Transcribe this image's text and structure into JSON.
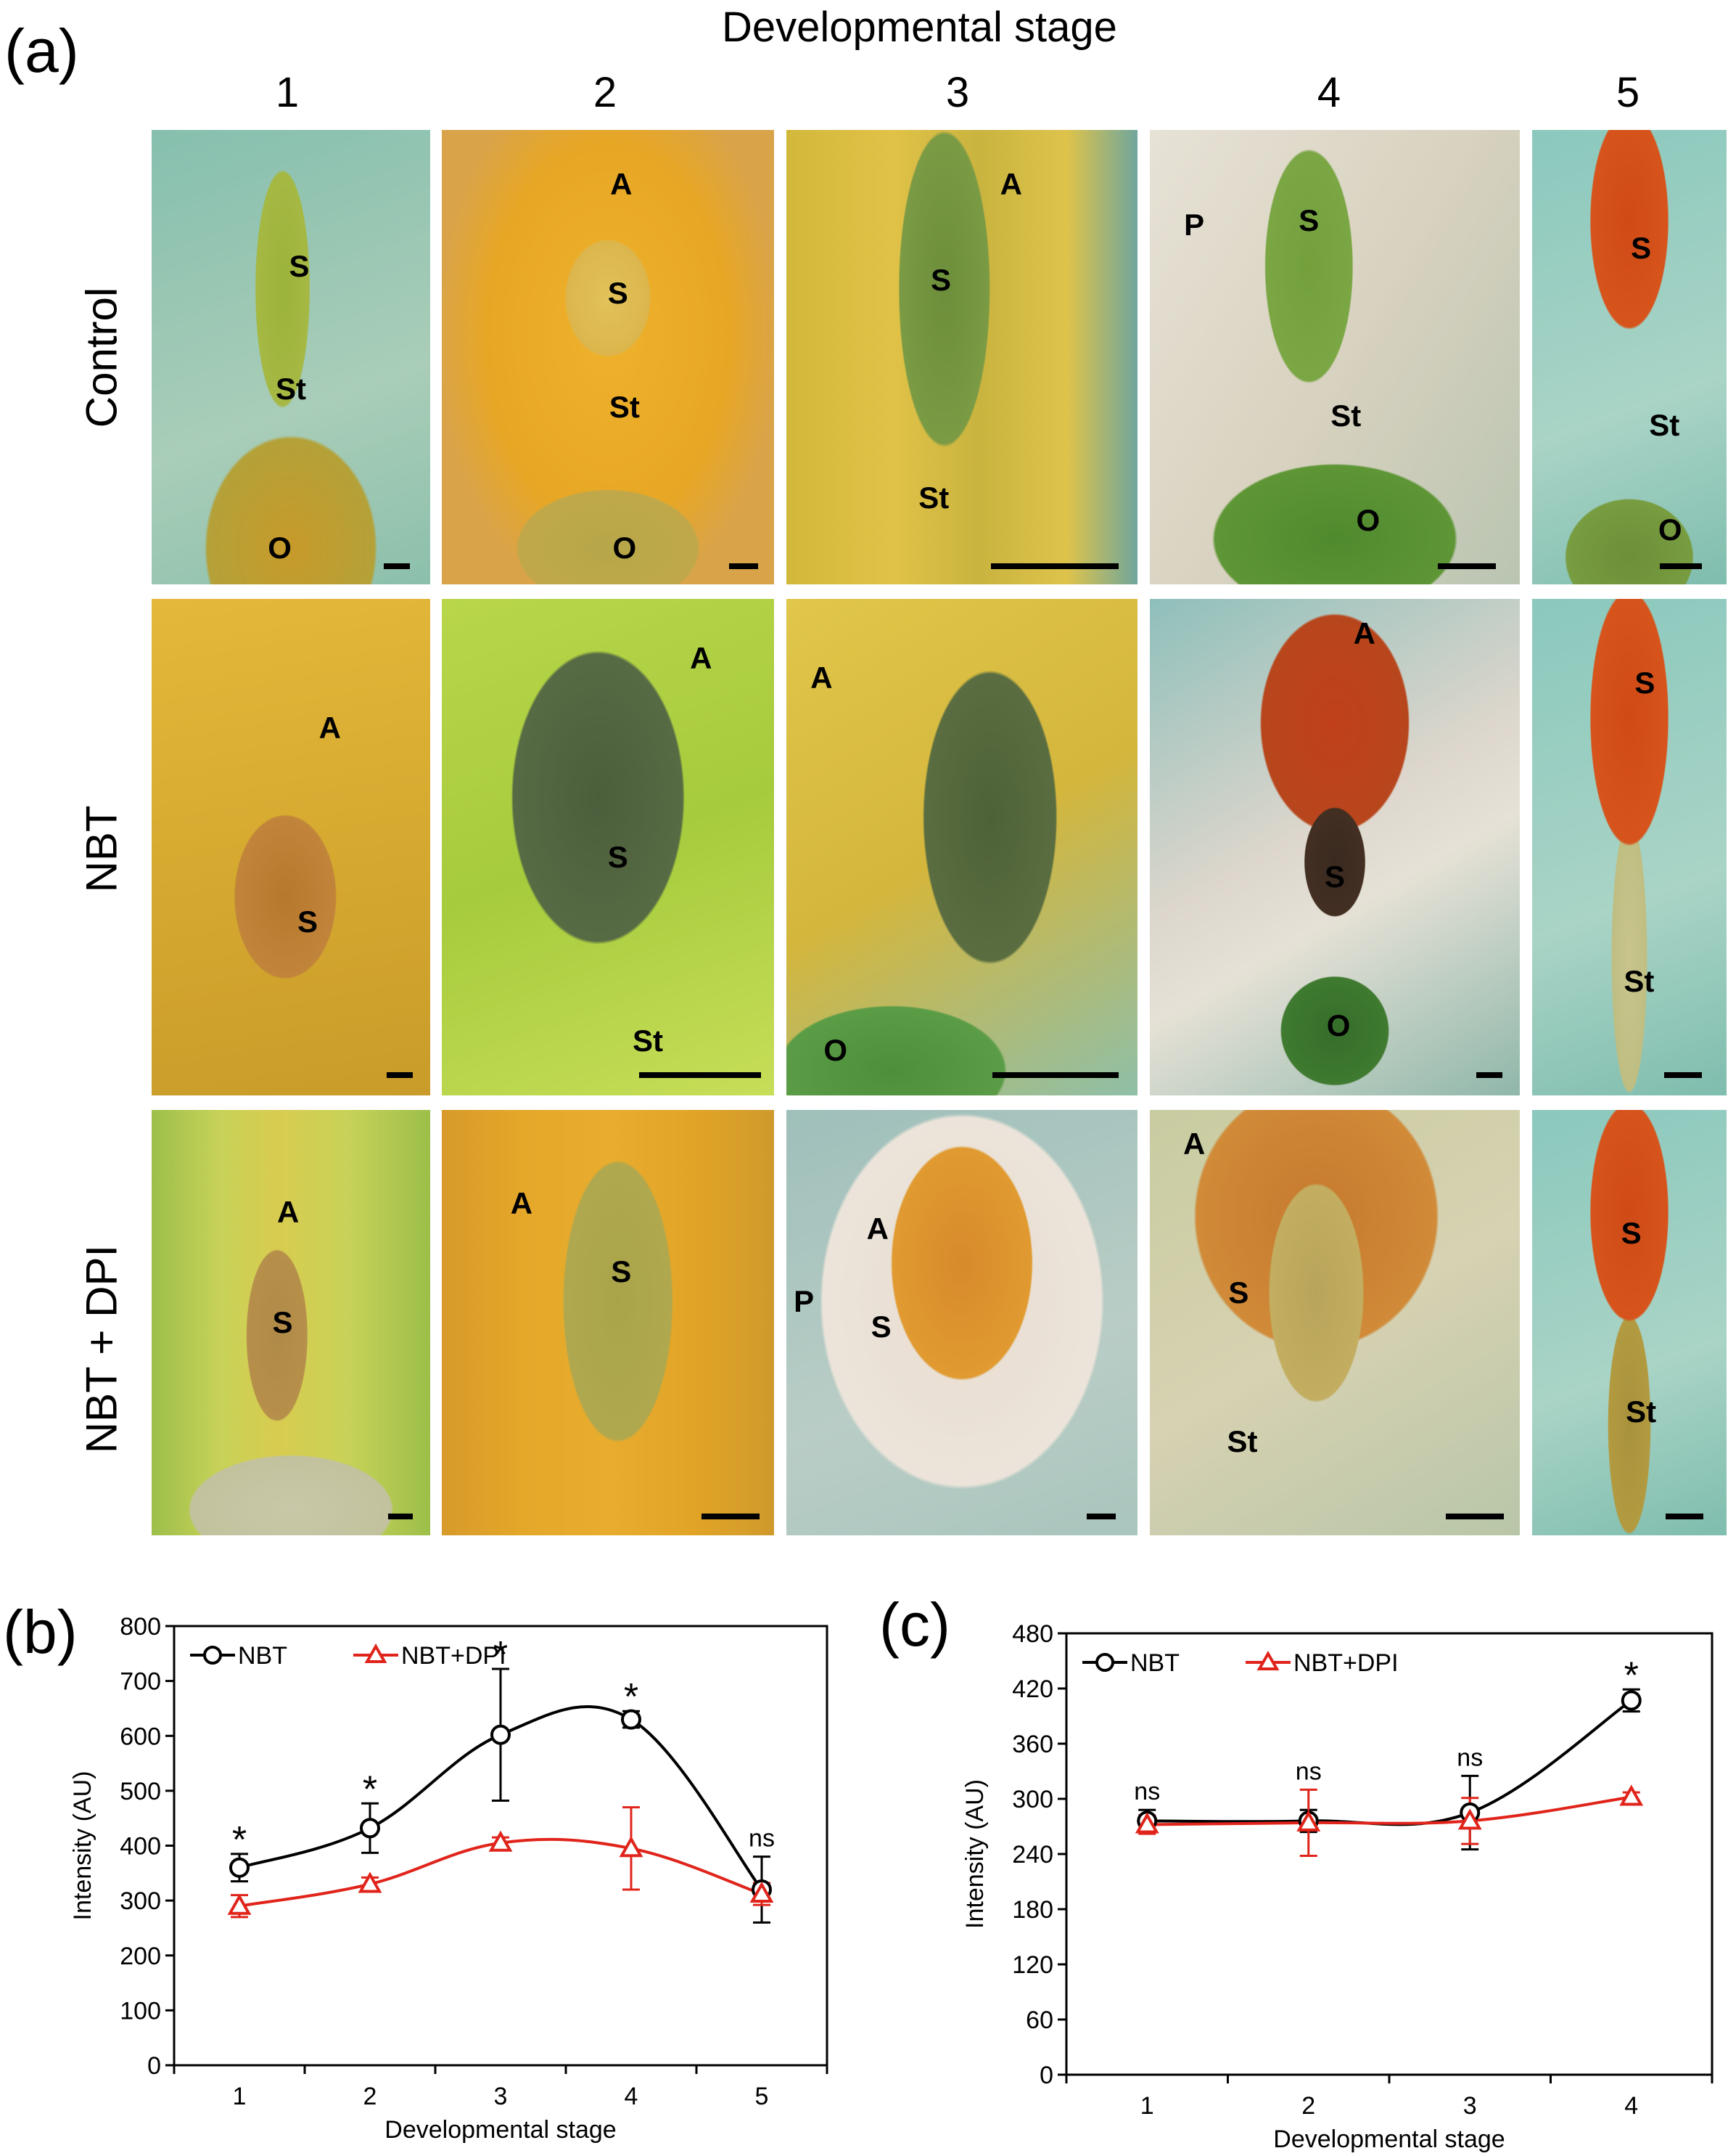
{
  "figure": {
    "panel_a_letter": "(a)",
    "panel_b_letter": "(b)",
    "panel_c_letter": "(c)",
    "panel_a_title": "Developmental stage",
    "stage_numbers": [
      "1",
      "2",
      "3",
      "4",
      "5"
    ],
    "row_labels": [
      "Control",
      "NBT",
      "NBT + DPI"
    ],
    "rows": [
      [
        {
          "labels": [
            "S",
            "St",
            "O"
          ]
        },
        {
          "labels": [
            "A",
            "S",
            "St",
            "O"
          ]
        },
        {
          "labels": [
            "A",
            "S",
            "St"
          ]
        },
        {
          "labels": [
            "P",
            "S",
            "St",
            "O"
          ]
        },
        {
          "labels": [
            "S",
            "St",
            "O"
          ]
        }
      ],
      [
        {
          "labels": [
            "A",
            "S"
          ]
        },
        {
          "labels": [
            "A",
            "S",
            "St"
          ]
        },
        {
          "labels": [
            "A",
            "O"
          ]
        },
        {
          "labels": [
            "A",
            "S",
            "O"
          ]
        },
        {
          "labels": [
            "S",
            "St"
          ]
        }
      ],
      [
        {
          "labels": [
            "A",
            "S"
          ]
        },
        {
          "labels": [
            "A",
            "S"
          ]
        },
        {
          "labels": [
            "P",
            "A",
            "S"
          ]
        },
        {
          "labels": [
            "A",
            "S",
            "St"
          ]
        },
        {
          "labels": [
            "S",
            "St"
          ]
        }
      ]
    ]
  },
  "colors": {
    "nbt": "#000000",
    "nbt_dpi": "#e0241b"
  },
  "chart_data": [
    {
      "type": "line",
      "panel": "(b)",
      "xlabel": "Developmental stage",
      "ylabel": "Intensity (AU)",
      "categories": [
        "1",
        "2",
        "3",
        "4",
        "5"
      ],
      "ylim": [
        0,
        800
      ],
      "yticks": [
        0,
        100,
        200,
        300,
        400,
        500,
        600,
        700,
        800
      ],
      "legend": "top-left",
      "grid": false,
      "smooth": true,
      "series": [
        {
          "name": "NBT",
          "marker": "circle",
          "values": [
            360,
            432,
            602,
            630,
            320
          ],
          "errors": [
            25,
            45,
            120,
            15,
            60
          ]
        },
        {
          "name": "NBT+DPI",
          "marker": "triangle",
          "values": [
            290,
            330,
            405,
            395,
            312
          ],
          "errors": [
            20,
            12,
            10,
            75,
            20
          ]
        }
      ],
      "annotations": [
        "*",
        "*",
        "*",
        "*",
        "ns"
      ]
    },
    {
      "type": "line",
      "panel": "(c)",
      "xlabel": "Developmental stage",
      "ylabel": "Intensity (AU)",
      "categories": [
        "1",
        "2",
        "3",
        "4"
      ],
      "ylim": [
        0,
        480
      ],
      "yticks": [
        0,
        60,
        120,
        180,
        240,
        300,
        360,
        420,
        480
      ],
      "legend": "top-left",
      "grid": false,
      "smooth": true,
      "series": [
        {
          "name": "NBT",
          "marker": "circle",
          "values": [
            276,
            276,
            285,
            407
          ],
          "errors": [
            12,
            12,
            40,
            12
          ]
        },
        {
          "name": "NBT+DPI",
          "marker": "triangle",
          "values": [
            272,
            274,
            276,
            302
          ],
          "errors": [
            10,
            36,
            25,
            5
          ]
        }
      ],
      "annotations": [
        "ns",
        "ns",
        "ns",
        "*"
      ]
    }
  ]
}
